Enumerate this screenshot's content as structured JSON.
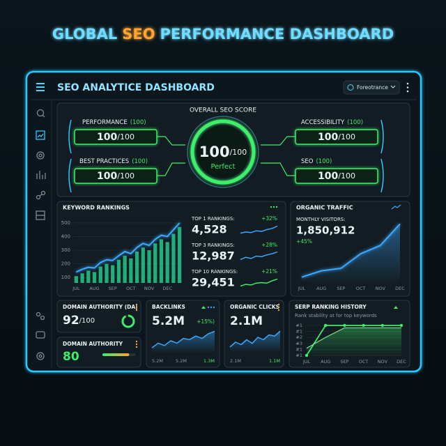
{
  "header": {
    "title": [
      "GLOBAL",
      "SEO",
      "PERFORMANCE DASHBOARD"
    ]
  },
  "window": {
    "title": "SEO ANALYTICE DASHBOARD",
    "dropdown": "Foreotrance"
  },
  "score": {
    "heading": "OVERALL SEO SCORE",
    "center": {
      "value": 100,
      "max": 100,
      "max_label": "/100",
      "label": "Perfect"
    },
    "metrics": [
      {
        "name": "PERFORMANCE",
        "badge": "(100)",
        "value": 100,
        "max_label": "/100"
      },
      {
        "name": "BEST PRACTICES",
        "badge": "(100)",
        "value": 100,
        "max_label": "/100"
      },
      {
        "name": "ACCESSIBILITY",
        "badge": "(100)",
        "value": 100,
        "max_label": "/100"
      },
      {
        "name": "SEO",
        "badge": "(100)",
        "value": 100,
        "max_label": "/100"
      }
    ]
  },
  "keyword_rankings": {
    "title": "KEYWORD RANKINGS",
    "chart": {
      "type": "bar",
      "categories": [
        "JUL",
        null,
        null,
        "AUG",
        null,
        null,
        "SEP",
        null,
        null,
        "OCT",
        null,
        null,
        "NOV",
        null,
        null,
        "DEC",
        null,
        null
      ],
      "series": [
        {
          "type": "bar",
          "color": "#23c98a",
          "values": [
            110,
            130,
            150,
            140,
            180,
            200,
            190,
            230,
            260,
            240,
            290,
            320,
            300,
            350,
            380,
            360,
            420,
            470
          ]
        },
        {
          "type": "line",
          "color": "#3aa8ff",
          "values": [
            140,
            160,
            175,
            170,
            210,
            230,
            225,
            260,
            290,
            275,
            320,
            350,
            335,
            380,
            410,
            400,
            450,
            500
          ]
        }
      ],
      "ylim": [
        60,
        520
      ],
      "yticks": [
        100,
        200,
        300,
        400,
        500
      ],
      "grid": true
    },
    "stats": [
      {
        "label": "TOP 1 RANKINGS:",
        "value": "4,528",
        "change": "+32%",
        "spark": {
          "values": [
            2,
            3,
            2.5,
            4,
            3.5,
            5,
            6,
            8
          ],
          "ylim": [
            0,
            10
          ],
          "color": "#3aa8ff"
        }
      },
      {
        "label": "TOP 3 RANKINGS:",
        "value": "12,987",
        "change": "+28%",
        "spark": {
          "values": [
            2,
            4,
            3,
            5,
            4.5,
            6,
            7,
            8.5
          ],
          "ylim": [
            0,
            10
          ],
          "color": "#3aa8ff"
        }
      },
      {
        "label": "TOP 10 RANKINGS:",
        "value": "29,451",
        "change": "+21%",
        "spark": {
          "values": [
            2,
            3.5,
            3,
            4.5,
            5,
            4.5,
            6.5,
            8
          ],
          "ylim": [
            0,
            10
          ],
          "color": "#3cef6a"
        }
      }
    ]
  },
  "organic_traffic": {
    "title": "ORGANIC TRAFFIC",
    "label": "MONTHLY VISITORS:",
    "value": "1,850,912",
    "change": "+45%",
    "chart": {
      "type": "line",
      "categories": [
        "JUL",
        "AUG",
        "SEP",
        "OCT",
        "NOV",
        "DEC"
      ],
      "values": [
        8,
        18,
        22,
        45,
        58,
        92
      ],
      "ylim": [
        0,
        100
      ],
      "color": "#3aa8ff"
    }
  },
  "domain_authority": {
    "title": "DOMAIN AUTHORITY (DA)",
    "value": 92,
    "max": 100,
    "max_label": "/100"
  },
  "domain_authority_2": {
    "title": "DOMAIN AUTHORITY",
    "value": 80,
    "max": 100
  },
  "backlinks": {
    "title": "BACKLINKS",
    "value": "5.2M",
    "change": "+15%)",
    "axis_labels": [
      "5.2M",
      "5.2M",
      "1.3M"
    ],
    "spark": {
      "values": [
        2,
        4,
        3,
        5,
        4,
        6,
        5.5,
        7,
        6,
        8,
        9
      ],
      "ylim": [
        0,
        10
      ],
      "color": "#3aa8ff"
    }
  },
  "organic_clicks": {
    "title": "ORGANIC CLICKS",
    "value": "2.1M",
    "axis_labels": [
      "2.1M",
      "1.1M"
    ],
    "spark": {
      "values": [
        2,
        4,
        3,
        5,
        3.5,
        6,
        5,
        7,
        6.5,
        8.5
      ],
      "ylim": [
        0,
        10
      ],
      "color": "#3aa8ff"
    }
  },
  "serp_history": {
    "title": "SERP RANKING HISTORY",
    "subtitle": "Rank stability at for top keywords",
    "chart": {
      "type": "line",
      "categories": [
        "JUL",
        "AUG",
        "SEP",
        "OCT",
        "NOV",
        "DEC"
      ],
      "y_labels": [
        "#1",
        "#1",
        "#2",
        "#3",
        "#1",
        "#1"
      ],
      "ylim": [
        0,
        5
      ],
      "series": [
        {
          "color": "#3cef6a",
          "values": [
            0,
            5,
            5,
            5,
            5,
            5
          ]
        },
        {
          "color": "#7fd88f",
          "values": [
            1.2,
            3,
            4.6,
            4.6,
            4.6,
            4.6
          ]
        }
      ]
    }
  }
}
